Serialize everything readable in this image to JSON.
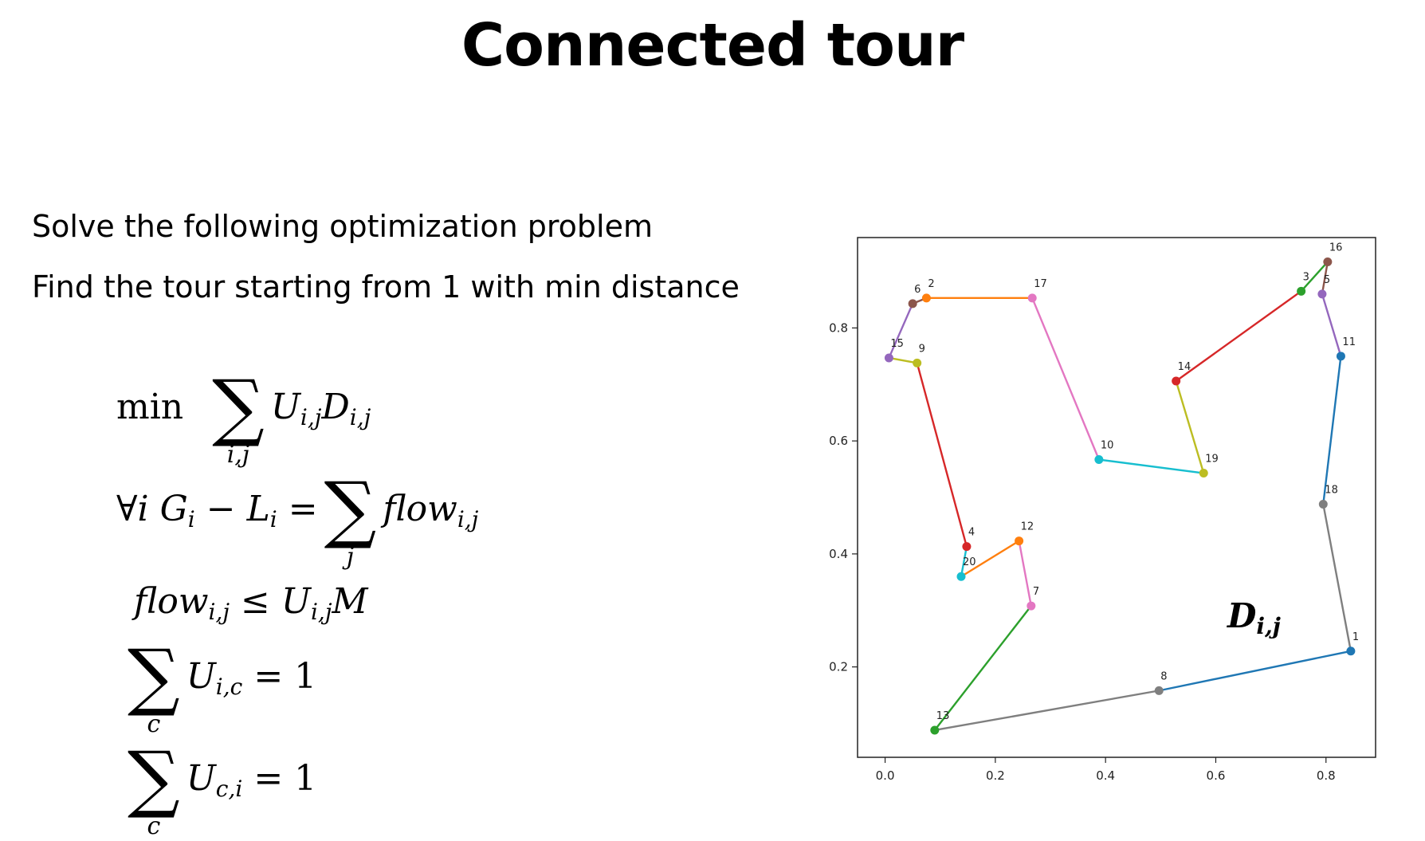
{
  "title": "Connected tour",
  "text": {
    "line1": "Solve the following optimization problem",
    "line2": "Find the tour starting from 1 with min distance"
  },
  "math": {
    "obj_min": "min",
    "obj_sum_sub": "i,j",
    "obj_term": "U",
    "obj_term_sub": "i,j",
    "obj_term2": "D",
    "obj_term2_sub": "i,j",
    "c1_prefix": "∀i G",
    "c1_prefix_sub": "i",
    "c1_minus": " − L",
    "c1_minus_sub": "i",
    "c1_eq": " = ",
    "c1_sum_sub": "j",
    "c1_term": "flow",
    "c1_term_sub": "i,j",
    "c2_lhs": "flow",
    "c2_lhs_sub": "i,j",
    "c2_rhs": " ≤ U",
    "c2_rhs_sub": "i,j",
    "c2_rhs2": "M",
    "c3_sum_sub": "c",
    "c3_term": "U",
    "c3_term_sub": "i,c",
    "c3_rhs": " = 1",
    "c4_sum_sub": "c",
    "c4_term": "U",
    "c4_term_sub": "c,i",
    "c4_rhs": " = 1"
  },
  "dij_label": "D",
  "dij_sub": "i,j",
  "chart_data": {
    "type": "line",
    "xlim": [
      -0.05,
      0.89
    ],
    "ylim": [
      0.04,
      0.96
    ],
    "xticks": [
      "0.0",
      "0.2",
      "0.4",
      "0.6",
      "0.8"
    ],
    "xtick_values": [
      0.0,
      0.2,
      0.4,
      0.6,
      0.8
    ],
    "yticks": [
      "0.2",
      "0.4",
      "0.6",
      "0.8"
    ],
    "ytick_values": [
      0.2,
      0.4,
      0.6,
      0.8
    ],
    "grid": false,
    "nodes": [
      {
        "id": "1",
        "x": 0.845,
        "y": 0.228,
        "color": "#1f77b4"
      },
      {
        "id": "2",
        "x": 0.075,
        "y": 0.853,
        "color": "#ff7f0e"
      },
      {
        "id": "3",
        "x": 0.755,
        "y": 0.865,
        "color": "#2ca02c"
      },
      {
        "id": "4",
        "x": 0.148,
        "y": 0.413,
        "color": "#d62728"
      },
      {
        "id": "5",
        "x": 0.793,
        "y": 0.86,
        "color": "#9467bd"
      },
      {
        "id": "6",
        "x": 0.05,
        "y": 0.843,
        "color": "#8c564b"
      },
      {
        "id": "7",
        "x": 0.265,
        "y": 0.308,
        "color": "#e377c2"
      },
      {
        "id": "8",
        "x": 0.497,
        "y": 0.158,
        "color": "#7f7f7f"
      },
      {
        "id": "9",
        "x": 0.058,
        "y": 0.738,
        "color": "#bcbd22"
      },
      {
        "id": "10",
        "x": 0.388,
        "y": 0.567,
        "color": "#17becf"
      },
      {
        "id": "11",
        "x": 0.827,
        "y": 0.75,
        "color": "#1f77b4"
      },
      {
        "id": "12",
        "x": 0.243,
        "y": 0.423,
        "color": "#ff7f0e"
      },
      {
        "id": "13",
        "x": 0.09,
        "y": 0.088,
        "color": "#2ca02c"
      },
      {
        "id": "14",
        "x": 0.528,
        "y": 0.706,
        "color": "#d62728"
      },
      {
        "id": "15",
        "x": 0.007,
        "y": 0.747,
        "color": "#9467bd"
      },
      {
        "id": "16",
        "x": 0.803,
        "y": 0.917,
        "color": "#8c564b"
      },
      {
        "id": "17",
        "x": 0.267,
        "y": 0.853,
        "color": "#e377c2"
      },
      {
        "id": "18",
        "x": 0.795,
        "y": 0.488,
        "color": "#7f7f7f"
      },
      {
        "id": "19",
        "x": 0.578,
        "y": 0.543,
        "color": "#bcbd22"
      },
      {
        "id": "20",
        "x": 0.138,
        "y": 0.36,
        "color": "#17becf"
      }
    ],
    "edges": [
      {
        "from": "1",
        "to": "8",
        "color": "#1f77b4"
      },
      {
        "from": "2",
        "to": "17",
        "color": "#ff7f0e"
      },
      {
        "from": "3",
        "to": "16",
        "color": "#2ca02c"
      },
      {
        "from": "4",
        "to": "9",
        "color": "#d62728"
      },
      {
        "from": "5",
        "to": "11",
        "color": "#9467bd"
      },
      {
        "from": "6",
        "to": "2",
        "color": "#8c564b"
      },
      {
        "from": "7",
        "to": "12",
        "color": "#e377c2"
      },
      {
        "from": "8",
        "to": "13",
        "color": "#7f7f7f"
      },
      {
        "from": "9",
        "to": "15",
        "color": "#bcbd22"
      },
      {
        "from": "10",
        "to": "19",
        "color": "#17becf"
      },
      {
        "from": "11",
        "to": "18",
        "color": "#1f77b4"
      },
      {
        "from": "12",
        "to": "20",
        "color": "#ff7f0e"
      },
      {
        "from": "13",
        "to": "7",
        "color": "#2ca02c"
      },
      {
        "from": "14",
        "to": "3",
        "color": "#d62728"
      },
      {
        "from": "15",
        "to": "6",
        "color": "#9467bd"
      },
      {
        "from": "16",
        "to": "5",
        "color": "#8c564b"
      },
      {
        "from": "17",
        "to": "10",
        "color": "#e377c2"
      },
      {
        "from": "18",
        "to": "1",
        "color": "#7f7f7f"
      },
      {
        "from": "19",
        "to": "14",
        "color": "#bcbd22"
      },
      {
        "from": "20",
        "to": "4",
        "color": "#17becf"
      }
    ]
  }
}
